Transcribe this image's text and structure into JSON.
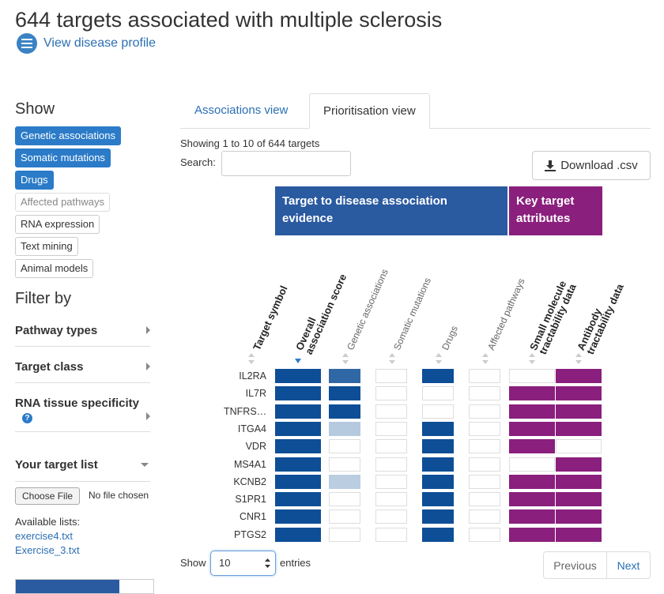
{
  "header": {
    "title": "644 targets associated with multiple sclerosis",
    "profile_link": "View disease profile"
  },
  "sidebar": {
    "show_heading": "Show",
    "show_items": [
      {
        "label": "Genetic associations",
        "active": true
      },
      {
        "label": "Somatic mutations",
        "active": true
      },
      {
        "label": "Drugs",
        "active": true
      },
      {
        "label": "Affected pathways",
        "active": false,
        "disabled": true
      },
      {
        "label": "RNA expression",
        "active": false
      },
      {
        "label": "Text mining",
        "active": false
      },
      {
        "label": "Animal models",
        "active": false
      }
    ],
    "filter_heading": "Filter by",
    "filters": [
      "Pathway types",
      "Target class",
      "RNA tissue specificity"
    ],
    "target_list_heading": "Your target list",
    "choose_file_label": "Choose File",
    "file_status": "No file chosen",
    "available_lists_label": "Available lists:",
    "available_lists": [
      "exercise4.txt",
      "Exercise_3.txt"
    ],
    "progress": 0.75
  },
  "tabs": [
    {
      "label": "Associations view",
      "active": false
    },
    {
      "label": "Prioritisation view",
      "active": true
    }
  ],
  "table_info": "Showing 1 to 10 of 644 targets",
  "search": {
    "label": "Search:",
    "value": ""
  },
  "download_label": "Download .csv",
  "groups": {
    "evidence": "Target to disease association evidence",
    "attributes": "Key target attributes"
  },
  "columns": [
    "Target symbol",
    "Overall association score",
    "Genetic associations",
    "Somatic mutations",
    "Drugs",
    "Affected pathways",
    "Small molecule tractability data",
    "Antibody tractability data"
  ],
  "rows": [
    {
      "symbol": "IL2RA",
      "values": [
        1.0,
        0.85,
        0,
        1.0,
        0,
        0,
        1
      ]
    },
    {
      "symbol": "IL7R",
      "values": [
        1.0,
        1.0,
        0,
        0,
        0,
        1,
        1
      ]
    },
    {
      "symbol": "TNFRS…",
      "values": [
        1.0,
        1.0,
        0,
        0,
        0,
        1,
        1
      ]
    },
    {
      "symbol": "ITGA4",
      "values": [
        1.0,
        0.3,
        0,
        1.0,
        0,
        1,
        1
      ]
    },
    {
      "symbol": "VDR",
      "values": [
        1.0,
        0,
        0,
        1.0,
        0,
        1,
        0
      ]
    },
    {
      "symbol": "MS4A1",
      "values": [
        1.0,
        0,
        0,
        1.0,
        0,
        0,
        1
      ]
    },
    {
      "symbol": "KCNB2",
      "values": [
        1.0,
        0.25,
        0,
        1.0,
        0,
        1,
        1
      ]
    },
    {
      "symbol": "S1PR1",
      "values": [
        1.0,
        0,
        0,
        1.0,
        0,
        1,
        1
      ]
    },
    {
      "symbol": "CNR1",
      "values": [
        1.0,
        0,
        0,
        1.0,
        0,
        1,
        1
      ]
    },
    {
      "symbol": "PTGS2",
      "values": [
        1.0,
        0,
        0,
        1.0,
        0,
        1,
        1
      ]
    }
  ],
  "pagination": {
    "show_label": "Show",
    "entries_value": "10",
    "entries_label": "entries",
    "previous": "Previous",
    "next": "Next"
  },
  "colors": {
    "evidence": "#0d4e96",
    "attribute": "#8a1f7d",
    "link": "#2b6fb4",
    "chip": "#2b7bc8"
  }
}
